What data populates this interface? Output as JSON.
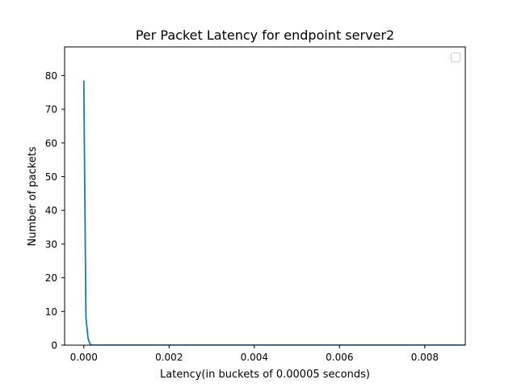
{
  "chart_data": {
    "type": "line",
    "title": "Per Packet Latency for endpoint server2",
    "xlabel": "Latency(in buckets of 0.00005 seconds)",
    "ylabel": "Number of packets",
    "xlim": [
      -0.00045,
      0.00895
    ],
    "ylim": [
      0,
      88.5
    ],
    "xticks": [
      0.0,
      0.002,
      0.004,
      0.006,
      0.008
    ],
    "xtick_labels": [
      "0.000",
      "0.002",
      "0.004",
      "0.006",
      "0.008"
    ],
    "yticks": [
      0,
      10,
      20,
      30,
      40,
      50,
      60,
      70,
      80
    ],
    "ytick_labels": [
      "0",
      "10",
      "20",
      "30",
      "40",
      "50",
      "60",
      "70",
      "80"
    ],
    "grid": false,
    "legend": {
      "placement": "top-right",
      "entries": []
    },
    "series": [
      {
        "color": "#1f77b4",
        "x": [
          0.0,
          5e-05,
          0.0001,
          0.00015,
          0.0002,
          0.0003,
          0.0005,
          0.001,
          0.002,
          0.004,
          0.006,
          0.008,
          0.00895
        ],
        "y": [
          78.5,
          8.2,
          2.0,
          0.2,
          0.0,
          0.0,
          0.0,
          0.0,
          0.0,
          0.0,
          0.0,
          0.0,
          0.0
        ]
      }
    ]
  }
}
